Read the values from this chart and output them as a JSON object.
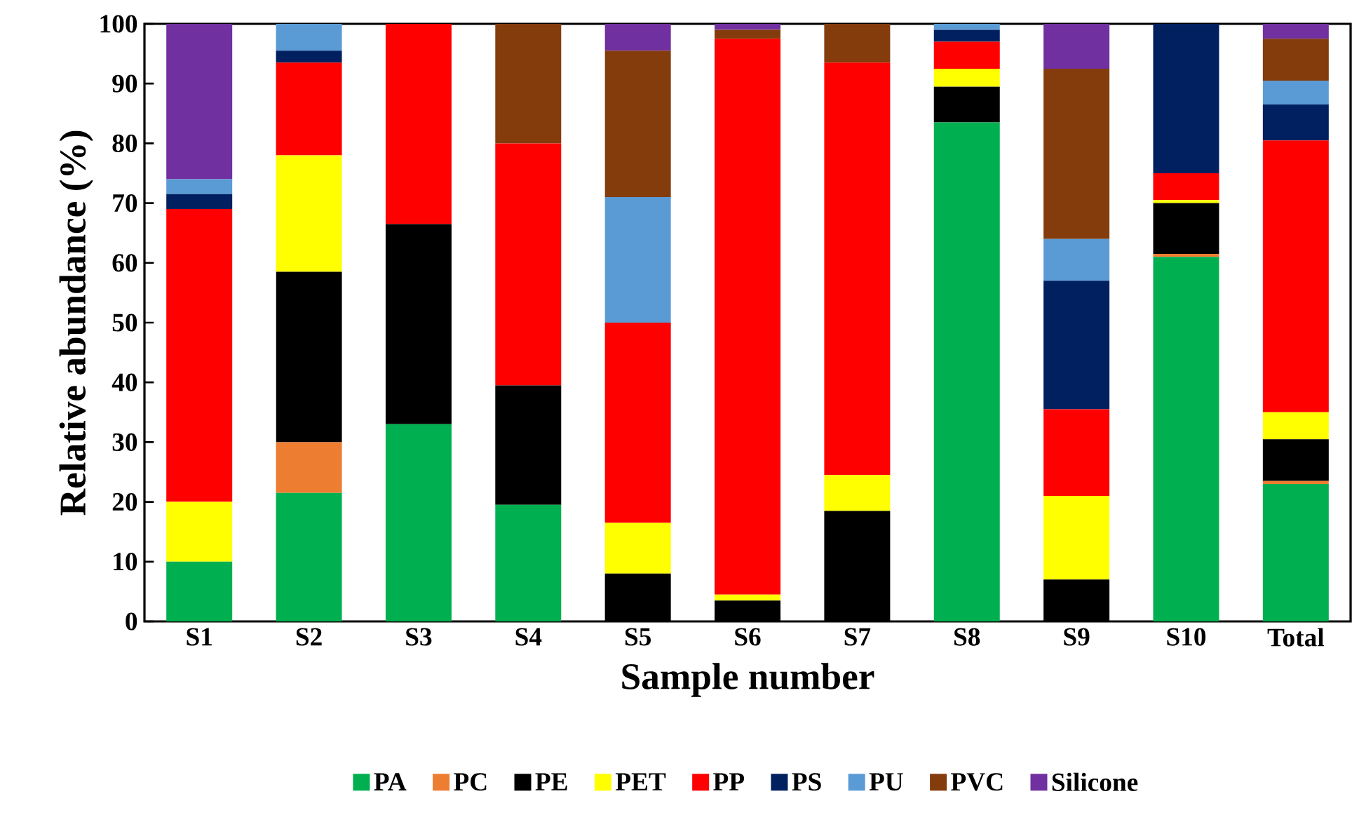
{
  "chart_data": {
    "type": "bar",
    "stacked": true,
    "xlabel": "Sample number",
    "ylabel": "Relative abundance (%)",
    "categories": [
      "S1",
      "S2",
      "S3",
      "S4",
      "S5",
      "S6",
      "S7",
      "S8",
      "S9",
      "S10",
      "Total"
    ],
    "series": [
      {
        "name": "PA",
        "color": "#00b050",
        "values": [
          10,
          21.5,
          33,
          19.5,
          0,
          0,
          0,
          83.5,
          0,
          61,
          23
        ]
      },
      {
        "name": "PC",
        "color": "#ed7d31",
        "values": [
          0,
          8.5,
          0,
          0,
          0,
          0,
          0,
          0,
          0,
          0.5,
          0.5
        ]
      },
      {
        "name": "PE",
        "color": "#000000",
        "values": [
          0,
          28.5,
          33.5,
          20,
          8,
          3.5,
          18.5,
          6,
          7,
          8.5,
          7
        ]
      },
      {
        "name": "PET",
        "color": "#ffff00",
        "values": [
          10,
          19.5,
          0,
          0,
          8.5,
          1,
          6,
          3,
          14,
          0.5,
          4.5
        ]
      },
      {
        "name": "PP",
        "color": "#ff0000",
        "values": [
          49,
          15.5,
          33.5,
          40.5,
          33.5,
          93,
          69,
          4.5,
          14.5,
          4.5,
          45.5
        ]
      },
      {
        "name": "PS",
        "color": "#002060",
        "values": [
          2.5,
          2,
          0,
          0,
          0,
          0,
          0,
          2,
          21.5,
          25,
          6
        ]
      },
      {
        "name": "PU",
        "color": "#5b9bd5",
        "values": [
          2.5,
          4.5,
          0,
          0,
          21,
          0,
          0,
          1,
          7,
          0,
          4
        ]
      },
      {
        "name": "PVC",
        "color": "#843c0c",
        "values": [
          0,
          0,
          0,
          20,
          24.5,
          1.5,
          6.5,
          0,
          28.5,
          0,
          7
        ]
      },
      {
        "name": "Silicone",
        "color": "#7030a0",
        "values": [
          26,
          0,
          0,
          0,
          4.5,
          1,
          0,
          0,
          7.5,
          0,
          2.5
        ]
      }
    ],
    "ylim": [
      0,
      100
    ],
    "yticks": [
      0,
      10,
      20,
      30,
      40,
      50,
      60,
      70,
      80,
      90,
      100
    ],
    "legend": "bottom"
  }
}
